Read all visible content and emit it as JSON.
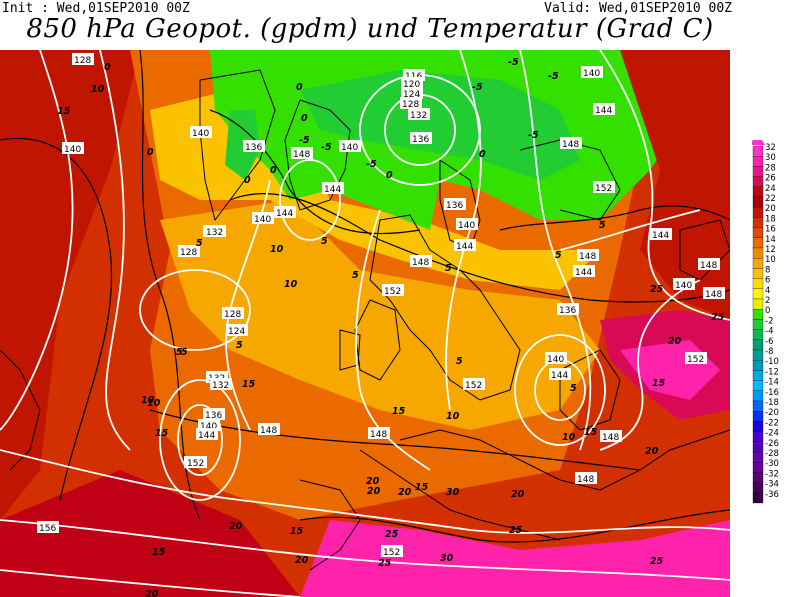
{
  "header": {
    "init": "Init : Wed,01SEP2010 00Z",
    "valid": "Valid: Wed,01SEP2010 00Z",
    "title": "850 hPa Geopot. (gpdm) und Temperatur (Grad C)"
  },
  "colorbar": {
    "labels": [
      "32",
      "30",
      "28",
      "26",
      "24",
      "22",
      "20",
      "18",
      "16",
      "14",
      "12",
      "10",
      "8",
      "6",
      "4",
      "2",
      "0",
      "-2",
      "-4",
      "-6",
      "-8",
      "-10",
      "-12",
      "-14",
      "-16",
      "-18",
      "-20",
      "-22",
      "-24",
      "-26",
      "-28",
      "-30",
      "-32",
      "-34",
      "-36"
    ],
    "colors": [
      "#ff33cc",
      "#ff22aa",
      "#ee1188",
      "#d80a55",
      "#c00015",
      "#a80000",
      "#c01500",
      "#d23000",
      "#df4a00",
      "#ea6a00",
      "#f08a00",
      "#f6a800",
      "#fbc200",
      "#ffdc00",
      "#fff200",
      "#e6f000",
      "#33e000",
      "#22cc33",
      "#11b555",
      "#009e77",
      "#009e99",
      "#0099bb",
      "#00aadd",
      "#00bbff",
      "#0099ff",
      "#0066ff",
      "#0033ee",
      "#2200dd",
      "#4400cc",
      "#5500bb",
      "#6600aa",
      "#66009a",
      "#55007a",
      "#44005a",
      "#330044"
    ]
  },
  "map": {
    "geopotential_labels": [
      "128",
      "140",
      "140",
      "136",
      "148",
      "144",
      "140",
      "132",
      "128",
      "128",
      "124",
      "132",
      "132",
      "136",
      "140",
      "144",
      "148",
      "148",
      "152",
      "156",
      "152",
      "116",
      "120",
      "124",
      "128",
      "132",
      "136",
      "140",
      "144",
      "148",
      "152",
      "136",
      "140",
      "144",
      "148",
      "152",
      "148",
      "148",
      "144",
      "140",
      "136",
      "140",
      "144",
      "148",
      "152",
      "152",
      "152",
      "148",
      "144",
      "148",
      "144",
      "132",
      "140"
    ],
    "temperature_labels": [
      "0",
      "10",
      "15",
      "0",
      "5",
      "0",
      "0",
      "-5",
      "-5",
      "0",
      "-5",
      "0",
      "-5",
      "-5",
      "-5",
      "-5",
      "0",
      "5",
      "5",
      "5",
      "10",
      "10",
      "5",
      "10",
      "5",
      "5",
      "5",
      "5",
      "10",
      "15",
      "15",
      "15",
      "15",
      "10",
      "15",
      "20",
      "20",
      "20",
      "25",
      "25",
      "30",
      "25",
      "20",
      "15",
      "20",
      "30",
      "25",
      "25",
      "20",
      "25",
      "20",
      "20",
      "15",
      "15",
      "20",
      "10",
      "5",
      "0",
      "5"
    ]
  }
}
